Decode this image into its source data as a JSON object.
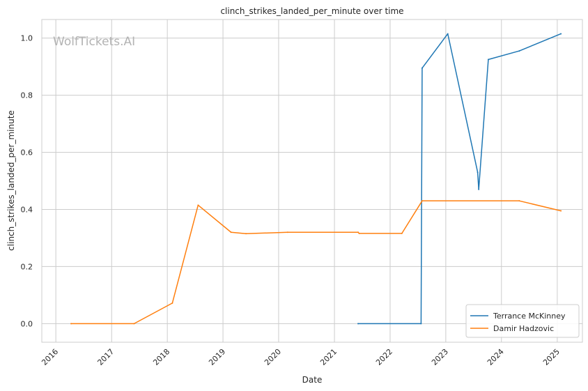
{
  "chart_data": {
    "type": "line",
    "title": "clinch_strikes_landed_per_minute over time",
    "xlabel": "Date",
    "ylabel": "clinch_strikes_landed_per_minute",
    "watermark": "WolfTickets.AI",
    "xlim": [
      "2015-10-01",
      "2025-06-15"
    ],
    "ylim": [
      -0.065,
      1.065
    ],
    "x_ticks": [
      "2016",
      "2017",
      "2018",
      "2019",
      "2020",
      "2021",
      "2022",
      "2023",
      "2024",
      "2025"
    ],
    "y_ticks": [
      "0.0",
      "0.2",
      "0.4",
      "0.6",
      "0.8",
      "1.0"
    ],
    "y_tick_values": [
      0,
      0.2,
      0.4,
      0.6,
      0.8,
      1.0
    ],
    "grid": true,
    "legend_position": "lower right",
    "series": [
      {
        "name": "Terrance McKinney",
        "color": "#1f77b4",
        "x": [
          "2021-06-05",
          "2022-07-23",
          "2022-07-30",
          "2023-01-14",
          "2023-07-29",
          "2023-08-05",
          "2023-10-07",
          "2024-04-27",
          "2025-01-25"
        ],
        "y": [
          0.0,
          0.0,
          0.895,
          1.015,
          0.53,
          0.47,
          0.925,
          0.955,
          1.015
        ]
      },
      {
        "name": "Damir Hadzovic",
        "color": "#ff7f0e",
        "x": [
          "2016-04-10",
          "2017-05-28",
          "2018-02-03",
          "2018-07-22",
          "2019-02-23",
          "2019-06-01",
          "2020-02-29",
          "2021-06-05",
          "2021-06-12",
          "2022-03-19",
          "2022-07-30",
          "2024-04-27",
          "2025-01-25"
        ],
        "y": [
          0.0,
          0.0,
          0.072,
          0.415,
          0.32,
          0.315,
          0.32,
          0.32,
          0.316,
          0.316,
          0.43,
          0.43,
          0.395
        ]
      }
    ]
  }
}
